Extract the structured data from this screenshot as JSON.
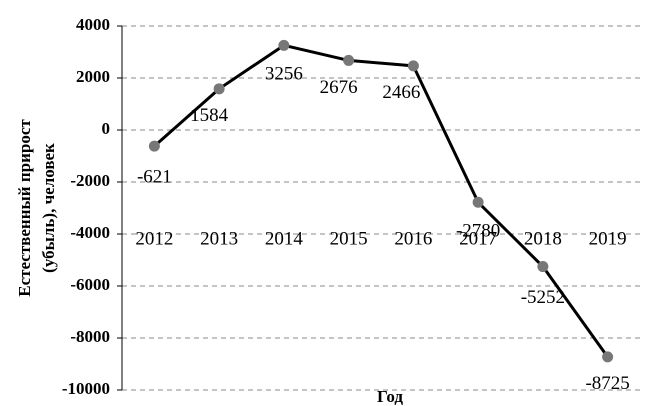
{
  "chart_data": {
    "type": "line",
    "categories": [
      "2012",
      "2013",
      "2014",
      "2015",
      "2016",
      "2017",
      "2018",
      "2019"
    ],
    "series": [
      {
        "name": "Естественный прирост",
        "color": "#000000",
        "values": [
          -621,
          1584,
          3256,
          2676,
          2466,
          -2780,
          -5252,
          -8725
        ]
      }
    ],
    "ylim": [
      -10000,
      4000
    ],
    "yticks": [
      -10000,
      -8000,
      -6000,
      -4000,
      -2000,
      0,
      2000,
      4000
    ],
    "ylabel": [
      "Естественный прирост",
      "(убыль), человек"
    ],
    "xlabel": "Год",
    "grid": true
  }
}
